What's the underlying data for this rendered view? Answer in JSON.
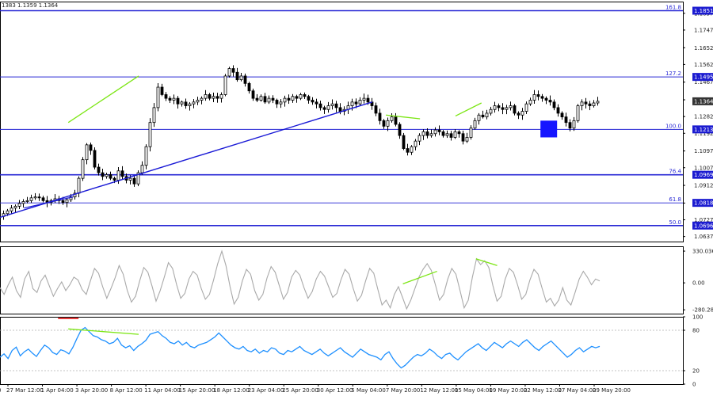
{
  "header": {
    "ohlc": "1383 1.1359 1.1364"
  },
  "chart_data": [
    {
      "type": "candlestick",
      "title": "",
      "y_ticks": [
        1.1837,
        1.1747,
        1.1652,
        1.1562,
        1.1467,
        1.1372,
        1.1282,
        1.1192,
        1.1097,
        1.1007,
        1.0912,
        1.0817,
        1.0727,
        1.0637
      ],
      "ylim": [
        1.061,
        1.19
      ],
      "x_ticks": [
        "27 Mar 12:00",
        "1 Apr 04:00",
        "3 Apr 20:00",
        "8 Apr 12:00",
        "11 Apr 04:00",
        "15 Apr 20:00",
        "18 Apr 12:00",
        "23 Apr 04:00",
        "25 Apr 20:00",
        "30 Apr 12:00",
        "5 May 04:00",
        "7 May 20:00",
        "12 May 12:00",
        "15 May 04:00",
        "19 May 20:00",
        "22 May 12:00",
        "27 May 04:00",
        "29 May 20:00"
      ],
      "x_tick_partial_left": "0",
      "current_price": 1.1364,
      "fib_levels": [
        {
          "label": "161.8",
          "value": 1.1851
        },
        {
          "label": "127.2",
          "value": 1.1495
        },
        {
          "label": "100.0",
          "value": 1.1213
        },
        {
          "label": "76.4",
          "value": 1.0969
        },
        {
          "label": "61.8",
          "value": 1.0818
        },
        {
          "label": "50.0",
          "value": 1.0696
        }
      ],
      "price_tags": [
        "1.1851",
        "1.1495",
        "1.1364",
        "1.1213",
        "1.0969",
        "1.0818",
        "1.0696"
      ],
      "trend_line": {
        "from": [
          0,
          1.074
        ],
        "to": [
          0.545,
          1.136
        ],
        "color": "#1a1ad6"
      },
      "divergence_lines": [
        {
          "from": [
            0.1,
            1.125
          ],
          "to": [
            0.203,
            1.15
          ]
        },
        {
          "from": [
            0.565,
            1.129
          ],
          "to": [
            0.615,
            1.127
          ]
        },
        {
          "from": [
            0.667,
            1.1285
          ],
          "to": [
            0.705,
            1.1355
          ]
        }
      ],
      "marker_box": {
        "x": 0.803,
        "y": [
          1.117,
          1.126
        ],
        "color": "#1515ff"
      },
      "series": [
        {
          "values": [
            1.076,
            1.0775,
            1.079,
            1.08,
            1.0815,
            1.0825,
            1.083,
            1.0845,
            1.085,
            1.0845,
            1.083,
            1.082,
            1.083,
            1.084,
            1.083,
            1.082,
            1.0835,
            1.085,
            1.087,
            1.095,
            1.105,
            1.113,
            1.11,
            1.101,
            1.098,
            1.096,
            1.097,
            1.095,
            1.094,
            1.099,
            1.096,
            1.094,
            1.095,
            1.092,
            1.098,
            1.102,
            1.112,
            1.125,
            1.133,
            1.144,
            1.14,
            1.138,
            1.137,
            1.138,
            1.135,
            1.136,
            1.134,
            1.135,
            1.136,
            1.137,
            1.138,
            1.14,
            1.138,
            1.139,
            1.138,
            1.14,
            1.15,
            1.154,
            1.152,
            1.148,
            1.15,
            1.146,
            1.142,
            1.138,
            1.137,
            1.139,
            1.136,
            1.138,
            1.137,
            1.135,
            1.136,
            1.138,
            1.137,
            1.139,
            1.138,
            1.14,
            1.139,
            1.137,
            1.136,
            1.135,
            1.133,
            1.132,
            1.134,
            1.135,
            1.133,
            1.131,
            1.132,
            1.134,
            1.136,
            1.135,
            1.137,
            1.138,
            1.136,
            1.134,
            1.13,
            1.126,
            1.123,
            1.126,
            1.128,
            1.124,
            1.118,
            1.111,
            1.109,
            1.112,
            1.115,
            1.118,
            1.12,
            1.118,
            1.119,
            1.121,
            1.12,
            1.118,
            1.119,
            1.117,
            1.12,
            1.119,
            1.115,
            1.117,
            1.122,
            1.126,
            1.129,
            1.128,
            1.13,
            1.132,
            1.134,
            1.133,
            1.132,
            1.133,
            1.134,
            1.13,
            1.129,
            1.131,
            1.135,
            1.137,
            1.14,
            1.139,
            1.138,
            1.137,
            1.136,
            1.133,
            1.13,
            1.128,
            1.125,
            1.122,
            1.126,
            1.134,
            1.136,
            1.135,
            1.134,
            1.1355,
            1.1364
          ]
        }
      ]
    },
    {
      "type": "line",
      "title": "",
      "y_ticks": [
        "330.0361",
        "0.00",
        "-280.2848"
      ],
      "ylim": [
        -320,
        380
      ],
      "series": [
        {
          "values": [
            -50,
            -120,
            -20,
            60,
            -80,
            -150,
            40,
            120,
            -60,
            -100,
            20,
            80,
            -30,
            -140,
            -60,
            10,
            -80,
            -20,
            60,
            30,
            -70,
            -120,
            20,
            150,
            100,
            -40,
            -160,
            -60,
            50,
            180,
            90,
            -80,
            -200,
            -140,
            20,
            160,
            110,
            -30,
            -190,
            -80,
            60,
            210,
            150,
            -20,
            -160,
            -110,
            40,
            120,
            80,
            -60,
            -170,
            -120,
            30,
            200,
            330,
            180,
            -40,
            -220,
            -150,
            20,
            140,
            90,
            -80,
            -180,
            -120,
            50,
            170,
            110,
            -30,
            -170,
            -100,
            60,
            130,
            80,
            -50,
            -160,
            -90,
            40,
            120,
            70,
            -40,
            -150,
            -110,
            30,
            140,
            90,
            -60,
            -190,
            -130,
            20,
            150,
            100,
            -70,
            -230,
            -180,
            -260,
            -120,
            -40,
            -150,
            -270,
            -180,
            -60,
            60,
            140,
            200,
            130,
            -20,
            -180,
            -120,
            40,
            150,
            90,
            -80,
            -260,
            -180,
            60,
            250,
            190,
            230,
            160,
            -30,
            -190,
            -140,
            40,
            150,
            110,
            -20,
            -170,
            -120,
            30,
            140,
            90,
            -60,
            -200,
            -160,
            -240,
            -180,
            -50,
            -180,
            -230,
            -100,
            40,
            120,
            60,
            -20,
            40,
            20
          ]
        }
      ]
    },
    {
      "type": "line",
      "title": "",
      "y_ticks": [
        "100",
        "80",
        "20",
        "0"
      ],
      "ylim": [
        0,
        100
      ],
      "levels": [
        80,
        20
      ],
      "overbought_mark": {
        "from": 0.085,
        "to": 0.115,
        "value": 100,
        "color": "#e00000"
      },
      "divergence_line": {
        "from": [
          0.1,
          82
        ],
        "to": [
          0.203,
          74
        ]
      },
      "series": [
        {
          "values": [
            40,
            45,
            38,
            50,
            55,
            42,
            48,
            52,
            46,
            41,
            50,
            58,
            54,
            47,
            44,
            51,
            49,
            45,
            55,
            68,
            80,
            84,
            78,
            72,
            70,
            66,
            64,
            60,
            62,
            68,
            58,
            54,
            57,
            50,
            56,
            60,
            65,
            74,
            76,
            78,
            72,
            68,
            62,
            60,
            64,
            58,
            62,
            56,
            54,
            58,
            60,
            62,
            66,
            70,
            76,
            70,
            64,
            58,
            54,
            52,
            56,
            50,
            48,
            52,
            46,
            50,
            48,
            54,
            52,
            46,
            44,
            50,
            48,
            52,
            56,
            50,
            47,
            44,
            48,
            52,
            46,
            42,
            46,
            50,
            54,
            48,
            44,
            40,
            46,
            52,
            48,
            44,
            42,
            40,
            36,
            44,
            48,
            38,
            30,
            24,
            28,
            34,
            40,
            44,
            42,
            46,
            52,
            48,
            42,
            38,
            44,
            46,
            40,
            36,
            42,
            48,
            52,
            56,
            60,
            54,
            50,
            56,
            62,
            58,
            54,
            60,
            64,
            60,
            56,
            62,
            66,
            60,
            54,
            50,
            56,
            60,
            64,
            58,
            52,
            46,
            40,
            44,
            50,
            54,
            48,
            52,
            56,
            54,
            56
          ]
        }
      ]
    }
  ]
}
